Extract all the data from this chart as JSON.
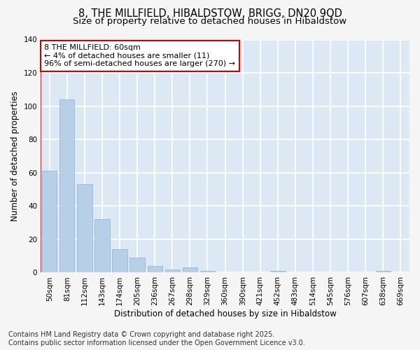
{
  "title_line1": "8, THE MILLFIELD, HIBALDSTOW, BRIGG, DN20 9QD",
  "title_line2": "Size of property relative to detached houses in Hibaldstow",
  "xlabel": "Distribution of detached houses by size in Hibaldstow",
  "ylabel": "Number of detached properties",
  "categories": [
    "50sqm",
    "81sqm",
    "112sqm",
    "143sqm",
    "174sqm",
    "205sqm",
    "236sqm",
    "267sqm",
    "298sqm",
    "329sqm",
    "360sqm",
    "390sqm",
    "421sqm",
    "452sqm",
    "483sqm",
    "514sqm",
    "545sqm",
    "576sqm",
    "607sqm",
    "638sqm",
    "669sqm"
  ],
  "values": [
    61,
    104,
    53,
    32,
    14,
    9,
    4,
    2,
    3,
    1,
    0,
    0,
    0,
    1,
    0,
    0,
    0,
    0,
    0,
    1,
    0
  ],
  "bar_color": "#b8cfe8",
  "bar_edge_color": "#9ab8d8",
  "annotation_box_text": "8 THE MILLFIELD: 60sqm\n← 4% of detached houses are smaller (11)\n96% of semi-detached houses are larger (270) →",
  "annotation_box_edge_color": "#cc0000",
  "annotation_box_face_color": "#ffffff",
  "highlight_x_line_color": "#cc0000",
  "ylim": [
    0,
    140
  ],
  "yticks": [
    0,
    20,
    40,
    60,
    80,
    100,
    120,
    140
  ],
  "footer_text": "Contains HM Land Registry data © Crown copyright and database right 2025.\nContains public sector information licensed under the Open Government Licence v3.0.",
  "fig_background_color": "#f5f5f5",
  "plot_bg_color": "#dce9f5",
  "grid_color": "#ffffff",
  "title_fontsize": 10.5,
  "subtitle_fontsize": 9.5,
  "annotation_fontsize": 8,
  "axis_label_fontsize": 8.5,
  "tick_fontsize": 7.5,
  "footer_fontsize": 7
}
